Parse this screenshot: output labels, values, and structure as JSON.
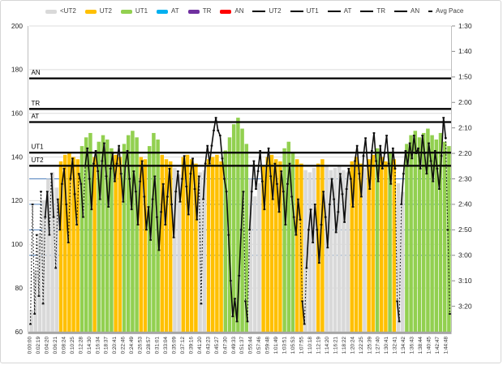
{
  "chart": {
    "title": "",
    "background_color": "#ffffff",
    "frame_border_color": "#d6d6d6"
  },
  "legend": {
    "items": [
      {
        "label": "<UT2",
        "type": "bar",
        "color": "#d9d9d9"
      },
      {
        "label": "UT2",
        "type": "bar",
        "color": "#ffc000"
      },
      {
        "label": "UT1",
        "type": "bar",
        "color": "#92d050"
      },
      {
        "label": "AT",
        "type": "bar",
        "color": "#00b0f0"
      },
      {
        "label": "TR",
        "type": "bar",
        "color": "#7030a0"
      },
      {
        "label": "AN",
        "type": "bar",
        "color": "#ff0000"
      },
      {
        "label": "UT2",
        "type": "line",
        "color": "#000000"
      },
      {
        "label": "UT1",
        "type": "line",
        "color": "#000000"
      },
      {
        "label": "AT",
        "type": "line",
        "color": "#000000"
      },
      {
        "label": "TR",
        "type": "line",
        "color": "#000000"
      },
      {
        "label": "AN",
        "type": "line",
        "color": "#000000"
      },
      {
        "label": "Avg Pace",
        "type": "dash",
        "color": "#000000"
      }
    ]
  },
  "chart_data": {
    "type": "combo: heart-rate zone columns (left axis) + avg pace line with dash markers (right axis)",
    "left_axis": {
      "min": 60,
      "max": 200,
      "step": 20,
      "tick_labels": [
        "200",
        "180",
        "160",
        "140",
        "120",
        "100",
        "80",
        "60"
      ]
    },
    "right_axis": {
      "top_seconds": 90,
      "tick_step_seconds": 10,
      "bottom_seconds": 210,
      "tick_labels": [
        "1:30",
        "1:40",
        "1:50",
        "2:00",
        "2:10",
        "2:20",
        "2:30",
        "2:40",
        "2:50",
        "3:00",
        "3:10",
        "3:20"
      ]
    },
    "x_tick_labels": [
      "0:00:00",
      "0:02:19",
      "0:04:20",
      "0:06:21",
      "0:08:24",
      "0:10:25",
      "0:12:28",
      "0:14:30",
      "0:16:34",
      "0:18:37",
      "0:20:41",
      "0:22:46",
      "0:24:49",
      "0:26:53",
      "0:28:57",
      "0:31:01",
      "0:33:04",
      "0:35:09",
      "0:37:12",
      "0:39:16",
      "0:41:20",
      "0:43:23",
      "0:45:27",
      "0:47:30",
      "0:49:33",
      "0:51:37",
      "0:55:44",
      "0:57:46",
      "0:59:48",
      "1:01:49",
      "1:03:51",
      "1:05:53",
      "1:07:55",
      "1:10:18",
      "1:12:19",
      "1:14:20",
      "1:16:21",
      "1:18:22",
      "1:20:24",
      "1:22:25",
      "1:25:39",
      "1:27:40",
      "1:30:41",
      "1:32:41",
      "1:34:42",
      "1:36:43",
      "1:38:44",
      "1:40:45",
      "1:42:47",
      "1:44:48"
    ],
    "zone_threshold_lines": [
      {
        "label": "AN",
        "hr": 176
      },
      {
        "label": "TR",
        "hr": 162
      },
      {
        "label": "AT",
        "hr": 156
      },
      {
        "label": "UT1",
        "hr": 142
      },
      {
        "label": "UT2",
        "hr": 136
      }
    ],
    "pace_reference_lines_seconds": [
      150,
      160,
      170,
      180
    ],
    "zone_colors": {
      "g": "#d9d9d9",
      "o": "#ffc000",
      "n": "#92d050"
    },
    "grid": {
      "hr_gridline_color": "#dcdcdc",
      "pace_gridline_color": "#4f81bd",
      "axis_line_color": "#a6a6a6",
      "tick_color": "#8c8c8c"
    },
    "hr_bars": {
      "values": [
        70,
        88,
        105,
        120,
        130,
        133,
        126,
        138,
        141,
        142,
        140,
        139,
        145,
        149,
        151,
        140,
        147,
        150,
        148,
        144,
        141,
        140,
        146,
        150,
        152,
        149,
        140,
        139,
        145,
        151,
        148,
        141,
        139,
        138,
        135,
        132,
        140,
        141,
        139,
        137,
        133,
        134,
        139,
        140,
        141,
        138,
        143,
        149,
        155,
        158,
        153,
        146,
        130,
        122,
        128,
        136,
        140,
        141,
        139,
        138,
        144,
        147,
        142,
        139,
        137,
        134,
        133,
        135,
        137,
        139,
        136,
        134,
        135,
        136,
        134,
        133,
        138,
        140,
        137,
        135,
        139,
        141,
        144,
        140,
        138,
        142,
        139,
        128,
        124,
        146,
        150,
        152,
        149,
        151,
        153,
        150,
        148,
        151,
        147,
        145
      ],
      "zones": "gggggggooooonnnonnnnoonnnnoonnnoooggooooggoooonnnnnngggooooonnnoogggooggggggooogoonoonoggnnnnnnnnnnn"
    },
    "avg_pace_seconds": [
      207,
      160,
      203,
      172,
      196,
      155,
      199,
      165,
      155,
      172,
      148,
      165,
      185,
      158,
      170,
      152,
      146,
      160,
      175,
      150,
      142,
      156,
      168,
      148,
      152,
      165,
      145,
      138,
      150,
      162,
      144,
      139,
      147,
      158,
      143,
      136,
      149,
      161,
      146,
      140,
      151,
      144,
      137,
      148,
      159,
      145,
      139,
      150,
      162,
      147,
      155,
      168,
      151,
      143,
      157,
      170,
      161,
      174,
      158,
      149,
      165,
      178,
      163,
      152,
      168,
      157,
      146,
      160,
      173,
      155,
      147,
      159,
      150,
      141,
      153,
      164,
      148,
      142,
      154,
      166,
      149,
      199,
      158,
      144,
      137,
      144,
      137,
      131,
      126,
      131,
      133,
      142,
      150,
      155,
      172,
      190,
      204,
      197,
      206,
      188,
      170,
      155,
      198,
      206,
      170,
      155,
      143,
      154,
      147,
      139,
      151,
      162,
      145,
      138,
      149,
      158,
      144,
      152,
      163,
      147,
      155,
      168,
      152,
      144,
      157,
      165,
      172,
      158,
      166,
      198,
      207,
      185,
      170,
      162,
      175,
      160,
      170,
      183,
      168,
      155,
      165,
      177,
      160,
      150,
      158,
      171,
      163,
      148,
      156,
      167,
      154,
      146,
      150,
      161,
      143,
      137,
      148,
      157,
      141,
      134,
      145,
      154,
      139,
      132,
      143,
      151,
      137,
      146,
      140,
      133,
      144,
      152,
      138,
      146,
      198,
      206,
      160,
      148,
      139,
      145,
      136,
      142,
      133,
      140,
      138,
      146,
      133,
      140,
      148,
      136,
      143,
      151,
      139,
      146,
      154,
      141,
      126,
      134,
      170,
      203
    ]
  }
}
